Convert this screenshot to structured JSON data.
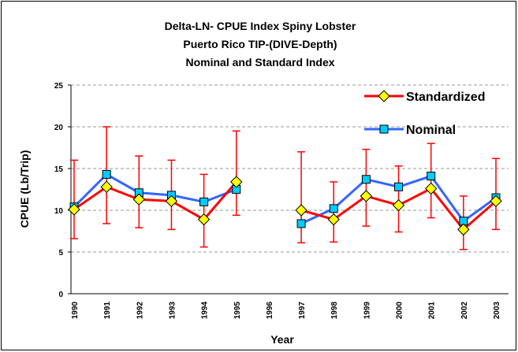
{
  "chart_data": {
    "type": "line",
    "title": [
      "Delta-LN- CPUE Index Spiny Lobster",
      "Puerto Rico TIP-(DIVE-Depth)",
      "Nominal and Standard Index"
    ],
    "x_label": "Year",
    "y_label": "CPUE (Lb/Trip)",
    "categories": [
      "1990",
      "1991",
      "1992",
      "1993",
      "1994",
      "1995",
      "1996",
      "1997",
      "1998",
      "1999",
      "2000",
      "2001",
      "2002",
      "2003"
    ],
    "series": [
      {
        "name": "Standardized",
        "color": "#ff0000",
        "marker": "diamond",
        "marker_color": "#ffff00",
        "values": [
          10.1,
          12.8,
          11.3,
          11.1,
          8.9,
          13.4,
          null,
          10.0,
          8.9,
          11.7,
          10.6,
          12.6,
          7.7,
          11.1
        ],
        "upper": [
          16.0,
          20.0,
          16.5,
          16.0,
          14.3,
          19.5,
          null,
          17.0,
          13.4,
          17.3,
          15.3,
          18.0,
          11.7,
          16.2
        ],
        "lower": [
          6.6,
          8.4,
          7.9,
          7.7,
          5.6,
          9.4,
          null,
          6.1,
          6.2,
          8.1,
          7.4,
          9.1,
          5.3,
          7.7
        ]
      },
      {
        "name": "Nominal",
        "color": "#3366ff",
        "marker": "square",
        "marker_color": "#00ccff",
        "values": [
          10.4,
          14.3,
          12.1,
          11.8,
          11.0,
          12.5,
          null,
          8.4,
          10.2,
          13.7,
          12.8,
          14.1,
          8.7,
          11.5
        ]
      }
    ],
    "ylim": [
      0,
      25
    ],
    "yticks": [
      0,
      5,
      10,
      15,
      20,
      25
    ],
    "grid": true,
    "legend": "upper right"
  }
}
